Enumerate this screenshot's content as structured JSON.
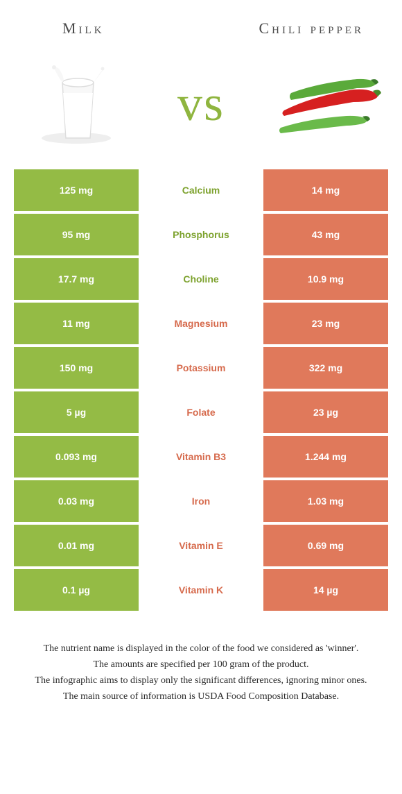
{
  "header": {
    "left_title": "Milk",
    "right_title": "Chili pepper",
    "vs": "vs"
  },
  "colors": {
    "left_bg": "#94bb45",
    "right_bg": "#e0795b",
    "left_text": "#7da a2e",
    "right_text": "#d66a4c",
    "vs_color": "#8fb53f"
  },
  "rows": [
    {
      "left": "125 mg",
      "label": "Calcium",
      "right": "14 mg",
      "winner": "left"
    },
    {
      "left": "95 mg",
      "label": "Phosphorus",
      "right": "43 mg",
      "winner": "left"
    },
    {
      "left": "17.7 mg",
      "label": "Choline",
      "right": "10.9 mg",
      "winner": "left"
    },
    {
      "left": "11 mg",
      "label": "Magnesium",
      "right": "23 mg",
      "winner": "right"
    },
    {
      "left": "150 mg",
      "label": "Potassium",
      "right": "322 mg",
      "winner": "right"
    },
    {
      "left": "5 µg",
      "label": "Folate",
      "right": "23 µg",
      "winner": "right"
    },
    {
      "left": "0.093 mg",
      "label": "Vitamin B3",
      "right": "1.244 mg",
      "winner": "right"
    },
    {
      "left": "0.03 mg",
      "label": "Iron",
      "right": "1.03 mg",
      "winner": "right"
    },
    {
      "left": "0.01 mg",
      "label": "Vitamin E",
      "right": "0.69 mg",
      "winner": "right"
    },
    {
      "left": "0.1 µg",
      "label": "Vitamin K",
      "right": "14 µg",
      "winner": "right"
    }
  ],
  "winner_colors": {
    "left": "#7da22e",
    "right": "#d66a4c"
  },
  "footer": {
    "line1": "The nutrient name is displayed in the color of the food we considered as 'winner'.",
    "line2": "The amounts are specified per 100 gram of the product.",
    "line3": "The infographic aims to display only the significant differences, ignoring minor ones.",
    "line4": "The main source of information is USDA Food Composition Database."
  }
}
